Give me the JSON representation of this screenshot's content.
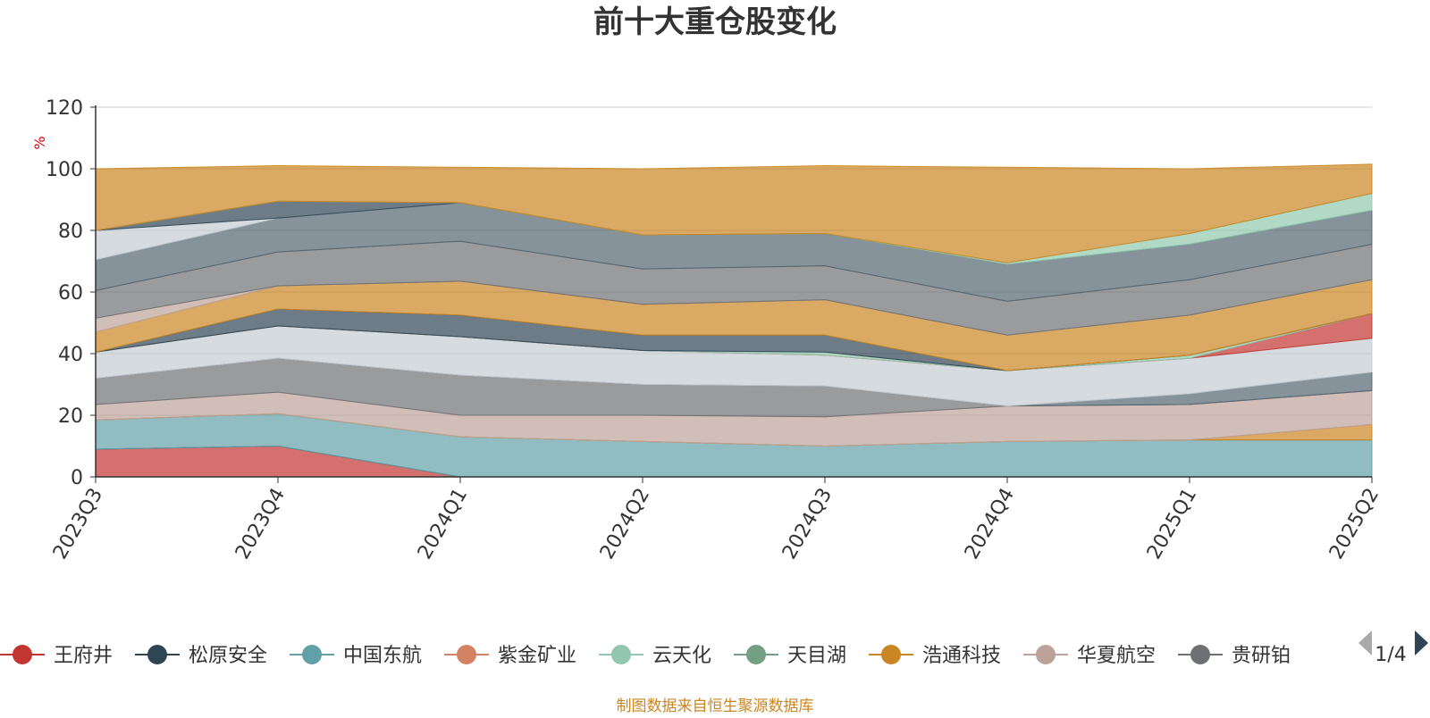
{
  "chart_data": {
    "type": "area",
    "stacked": true,
    "title": "前十大重仓股变化",
    "ylabel": "%",
    "xlabel": "",
    "ylim": [
      0,
      120
    ],
    "yticks": [
      0,
      20,
      40,
      60,
      80,
      100,
      120
    ],
    "grid": "horizontal",
    "categories": [
      "2023Q3",
      "2023Q4",
      "2024Q1",
      "2024Q2",
      "2024Q3",
      "2024Q4",
      "2025Q1",
      "2025Q2"
    ],
    "series": [
      {
        "name": "王府井",
        "color": "#c23531",
        "values": [
          9,
          10,
          0,
          0,
          0,
          0,
          0,
          0
        ]
      },
      {
        "name": "",
        "color": "#2f4554",
        "values": [
          0,
          0,
          0,
          0,
          0,
          0,
          0,
          0
        ]
      },
      {
        "name": "中国东航",
        "color": "#61a0a8",
        "values": [
          9.5,
          10.5,
          13,
          11.5,
          10,
          11.5,
          12,
          12
        ]
      },
      {
        "name": "",
        "color": "#d48265",
        "values": [
          0,
          0,
          0,
          0,
          0,
          0,
          0,
          0
        ]
      },
      {
        "name": "",
        "color": "#91c7ae",
        "values": [
          0,
          0,
          0,
          0,
          0,
          0,
          0,
          0
        ]
      },
      {
        "name": "",
        "color": "#749f83",
        "values": [
          0,
          0,
          0,
          0,
          0,
          0,
          0,
          0
        ]
      },
      {
        "name": "",
        "color": "#ca8622",
        "values": [
          0,
          0,
          0,
          0,
          0,
          0,
          0,
          5
        ]
      },
      {
        "name": "华夏航空",
        "color": "#bda29a",
        "values": [
          5,
          7,
          7,
          8.5,
          9.5,
          11.5,
          11.5,
          11
        ]
      },
      {
        "name": "",
        "color": "#6e7074",
        "values": [
          8.5,
          11,
          13,
          10,
          10,
          0,
          0,
          0
        ]
      },
      {
        "name": "",
        "color": "#546570",
        "values": [
          0,
          0,
          0,
          0,
          0,
          0,
          3.5,
          6
        ]
      },
      {
        "name": "",
        "color": "#c4ccd3",
        "values": [
          8.5,
          10.5,
          12.5,
          11,
          10,
          11.5,
          11.5,
          11
        ]
      },
      {
        "name": "",
        "color": "#c23531",
        "values": [
          0,
          0,
          0,
          0,
          0,
          0,
          0,
          8
        ]
      },
      {
        "name": "",
        "color": "#91c7ae",
        "values": [
          0,
          0,
          0,
          0,
          1,
          0,
          1,
          0
        ]
      },
      {
        "name": "",
        "color": "#2f4554",
        "values": [
          0,
          5.5,
          7,
          5,
          5.5,
          0,
          0,
          0
        ]
      },
      {
        "name": "",
        "color": "#ca8622",
        "values": [
          6.5,
          7.5,
          11,
          10,
          11.5,
          11.5,
          13,
          11
        ]
      },
      {
        "name": "",
        "color": "#bda29a",
        "values": [
          4.5,
          0,
          0,
          0,
          0,
          0,
          0,
          0
        ]
      },
      {
        "name": "",
        "color": "#6e7074",
        "values": [
          9,
          11,
          13,
          11.5,
          11,
          11,
          11.5,
          11.5
        ]
      },
      {
        "name": "",
        "color": "#546570",
        "values": [
          10,
          11,
          12.5,
          11,
          10.5,
          12,
          11.5,
          11
        ]
      },
      {
        "name": "",
        "color": "#c4ccd3",
        "values": [
          9.5,
          0,
          0,
          0,
          0,
          0,
          0,
          0
        ]
      },
      {
        "name": "",
        "color": "#2f4554",
        "values": [
          0,
          5.5,
          0,
          0,
          0,
          0,
          0,
          0
        ]
      },
      {
        "name": "",
        "color": "#91c7ae",
        "values": [
          0,
          0,
          0,
          0,
          0,
          0.5,
          3.5,
          5.5
        ]
      },
      {
        "name": "",
        "color": "#ca8622",
        "values": [
          20,
          11.5,
          11.5,
          21.5,
          22,
          31,
          21,
          9.5
        ]
      }
    ]
  },
  "legend": {
    "items": [
      {
        "label": "王府井",
        "color": "#c23531"
      },
      {
        "label": "松原安全",
        "color": "#2f4554"
      },
      {
        "label": "中国东航",
        "color": "#61a0a8"
      },
      {
        "label": "紫金矿业",
        "color": "#d48265"
      },
      {
        "label": "云天化",
        "color": "#91c7ae"
      },
      {
        "label": "天目湖",
        "color": "#749f83"
      },
      {
        "label": "浩通科技",
        "color": "#ca8622"
      },
      {
        "label": "华夏航空",
        "color": "#bda29a"
      },
      {
        "label": "贵研铂",
        "color": "#6e7074"
      }
    ],
    "page": "1/4"
  },
  "footer": {
    "source": "制图数据来自恒生聚源数据库"
  }
}
